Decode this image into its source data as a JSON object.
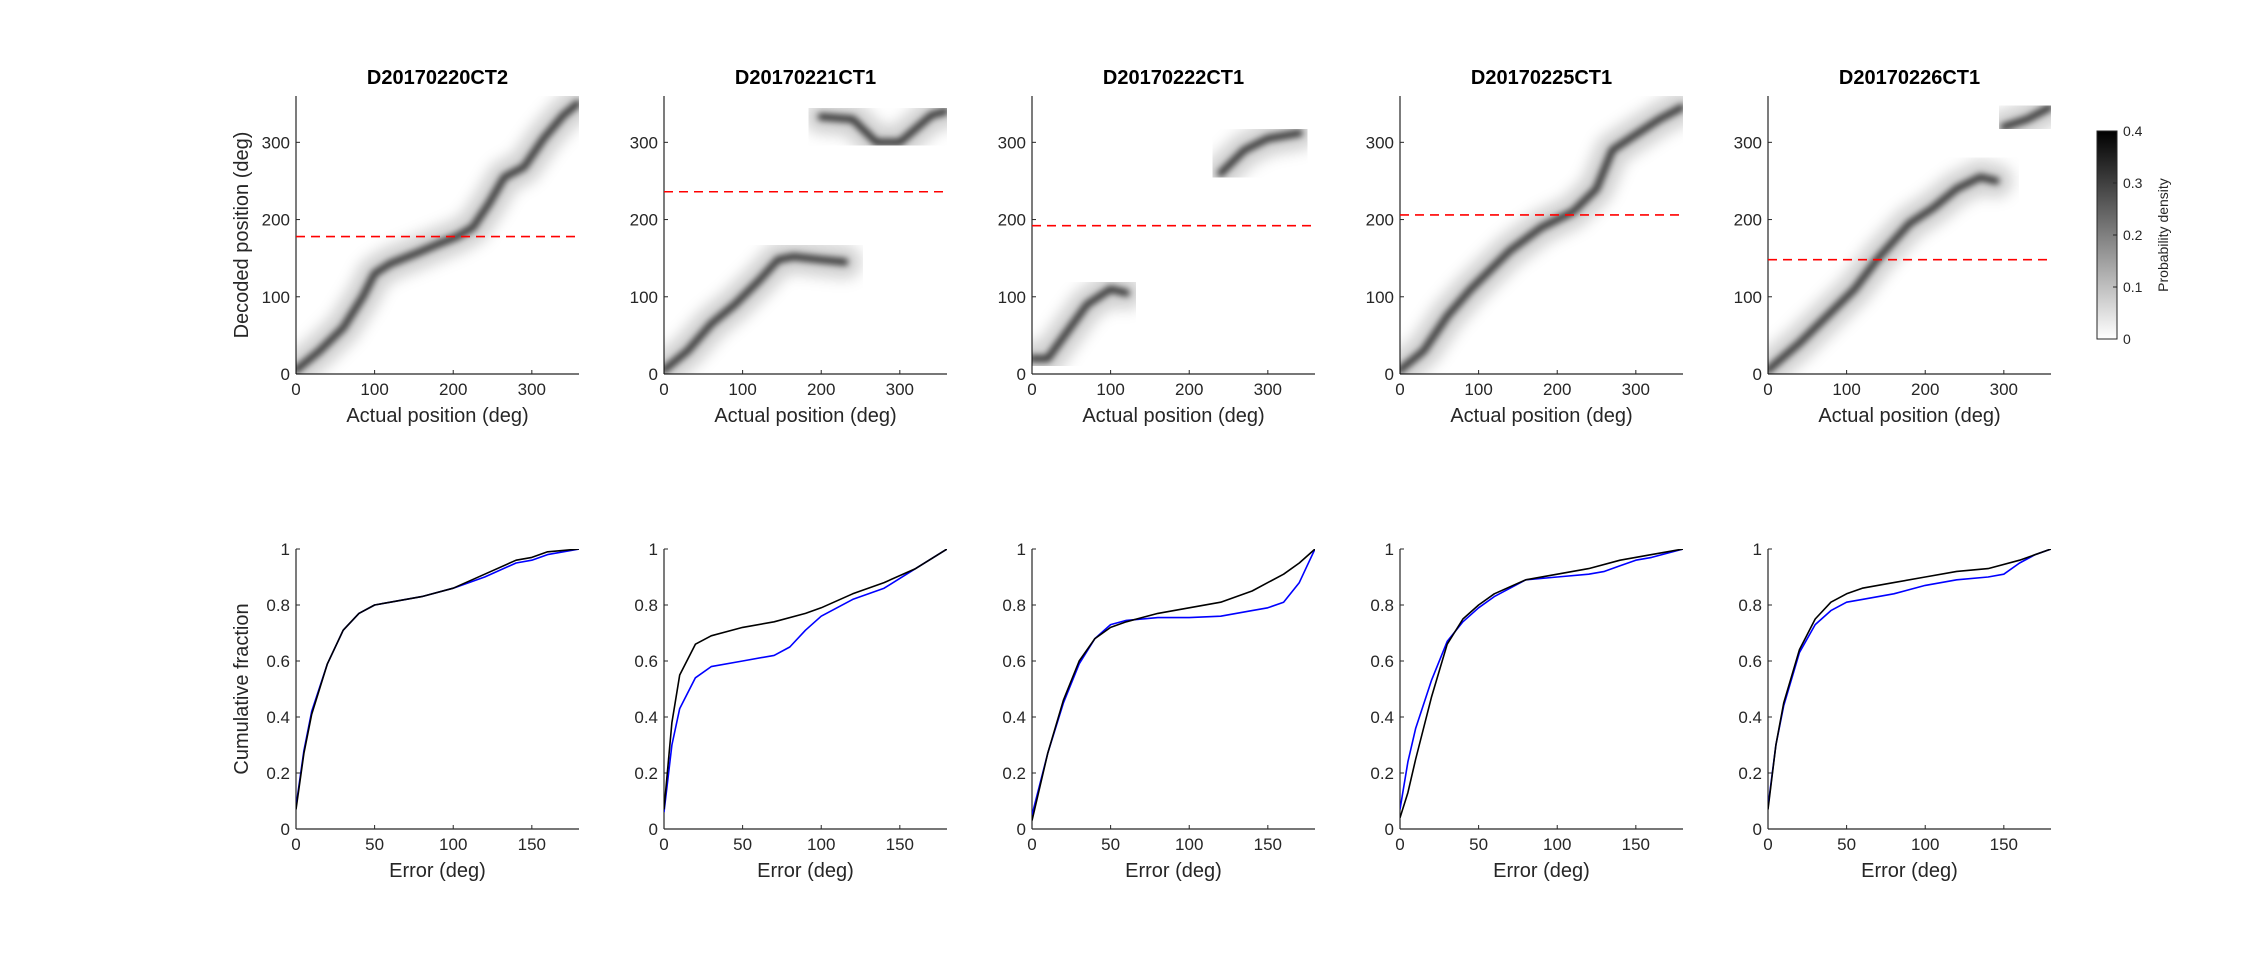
{
  "chart_data": [
    {
      "type": "heatmap",
      "title": "D20170220CT2",
      "xlabel": "Actual position (deg)",
      "ylabel": "Decoded position (deg)",
      "xlim": [
        0,
        360
      ],
      "ylim": [
        0,
        360
      ],
      "xticks": [
        "0",
        "100",
        "200",
        "300"
      ],
      "yticks": [
        "0",
        "100",
        "200",
        "300"
      ],
      "reference_line": 178,
      "trace": [
        [
          0,
          5
        ],
        [
          30,
          30
        ],
        [
          60,
          60
        ],
        [
          85,
          100
        ],
        [
          100,
          130
        ],
        [
          120,
          143
        ],
        [
          150,
          155
        ],
        [
          180,
          168
        ],
        [
          205,
          178
        ],
        [
          225,
          190
        ],
        [
          245,
          220
        ],
        [
          265,
          255
        ],
        [
          290,
          268
        ],
        [
          315,
          305
        ],
        [
          340,
          335
        ],
        [
          358,
          350
        ]
      ]
    },
    {
      "type": "heatmap",
      "title": "D20170221CT1",
      "xlabel": "Actual position (deg)",
      "ylabel": "",
      "xlim": [
        0,
        360
      ],
      "ylim": [
        0,
        360
      ],
      "xticks": [
        "0",
        "100",
        "200",
        "300"
      ],
      "yticks": [
        "0",
        "100",
        "200",
        "300"
      ],
      "reference_line": 236,
      "trace": [
        [
          0,
          5
        ],
        [
          30,
          30
        ],
        [
          60,
          65
        ],
        [
          90,
          90
        ],
        [
          120,
          120
        ],
        [
          145,
          148
        ],
        [
          165,
          152
        ],
        [
          200,
          148
        ],
        [
          230,
          145
        ]
      ],
      "trace2": [
        [
          200,
          333
        ],
        [
          240,
          330
        ],
        [
          270,
          300
        ],
        [
          300,
          300
        ],
        [
          340,
          335
        ],
        [
          358,
          340
        ]
      ]
    },
    {
      "type": "heatmap",
      "title": "D20170222CT1",
      "xlabel": "Actual position (deg)",
      "ylabel": "",
      "xlim": [
        0,
        360
      ],
      "ylim": [
        0,
        360
      ],
      "xticks": [
        "0",
        "100",
        "200",
        "300"
      ],
      "yticks": [
        "0",
        "100",
        "200",
        "300"
      ],
      "reference_line": 192,
      "trace": [
        [
          0,
          20
        ],
        [
          20,
          20
        ],
        [
          70,
          90
        ],
        [
          100,
          110
        ],
        [
          120,
          105
        ]
      ],
      "trace2": [
        [
          240,
          260
        ],
        [
          270,
          290
        ],
        [
          300,
          305
        ],
        [
          340,
          312
        ]
      ]
    },
    {
      "type": "heatmap",
      "title": "D20170225CT1",
      "xlabel": "Actual position (deg)",
      "ylabel": "",
      "xlim": [
        0,
        360
      ],
      "ylim": [
        0,
        360
      ],
      "xticks": [
        "0",
        "100",
        "200",
        "300"
      ],
      "yticks": [
        "0",
        "100",
        "200",
        "300"
      ],
      "reference_line": 206,
      "trace": [
        [
          0,
          5
        ],
        [
          30,
          30
        ],
        [
          60,
          75
        ],
        [
          90,
          110
        ],
        [
          110,
          130
        ],
        [
          140,
          160
        ],
        [
          180,
          190
        ],
        [
          220,
          210
        ],
        [
          250,
          240
        ],
        [
          270,
          290
        ],
        [
          300,
          310
        ],
        [
          330,
          330
        ],
        [
          358,
          345
        ]
      ]
    },
    {
      "type": "heatmap",
      "title": "D20170226CT1",
      "xlabel": "Actual position (deg)",
      "ylabel": "",
      "xlim": [
        0,
        360
      ],
      "ylim": [
        0,
        360
      ],
      "xticks": [
        "0",
        "100",
        "200",
        "300"
      ],
      "yticks": [
        "0",
        "100",
        "200",
        "300"
      ],
      "reference_line": 148,
      "trace": [
        [
          0,
          5
        ],
        [
          40,
          40
        ],
        [
          80,
          80
        ],
        [
          110,
          110
        ],
        [
          140,
          150
        ],
        [
          180,
          195
        ],
        [
          210,
          215
        ],
        [
          240,
          240
        ],
        [
          270,
          255
        ],
        [
          290,
          250
        ]
      ],
      "trace2": [
        [
          300,
          320
        ],
        [
          330,
          330
        ],
        [
          358,
          345
        ]
      ]
    },
    {
      "type": "line",
      "title": "",
      "xlabel": "Error (deg)",
      "ylabel": "Cumulative fraction",
      "xlim": [
        0,
        180
      ],
      "ylim": [
        0,
        1
      ],
      "xticks": [
        "0",
        "50",
        "100",
        "150"
      ],
      "yticks": [
        "0",
        "0.2",
        "0.4",
        "0.6",
        "0.8",
        "1"
      ],
      "series": [
        {
          "color": "#0000ff",
          "x": [
            0,
            5,
            10,
            20,
            30,
            40,
            50,
            60,
            80,
            100,
            120,
            140,
            150,
            160,
            170,
            180
          ],
          "y": [
            0.08,
            0.28,
            0.42,
            0.59,
            0.71,
            0.77,
            0.8,
            0.81,
            0.83,
            0.86,
            0.9,
            0.95,
            0.96,
            0.98,
            0.99,
            1.0
          ]
        },
        {
          "color": "#000000",
          "x": [
            0,
            5,
            10,
            20,
            30,
            40,
            50,
            60,
            80,
            100,
            120,
            140,
            150,
            160,
            170,
            180
          ],
          "y": [
            0.07,
            0.27,
            0.41,
            0.59,
            0.71,
            0.77,
            0.8,
            0.81,
            0.83,
            0.86,
            0.91,
            0.96,
            0.97,
            0.99,
            0.995,
            1.0
          ]
        }
      ]
    },
    {
      "type": "line",
      "title": "",
      "xlabel": "Error (deg)",
      "ylabel": "",
      "xlim": [
        0,
        180
      ],
      "ylim": [
        0,
        1
      ],
      "xticks": [
        "0",
        "50",
        "100",
        "150"
      ],
      "yticks": [
        "0",
        "0.2",
        "0.4",
        "0.6",
        "0.8",
        "1"
      ],
      "series": [
        {
          "color": "#0000ff",
          "x": [
            0,
            5,
            10,
            20,
            30,
            50,
            70,
            80,
            90,
            100,
            120,
            140,
            160,
            180
          ],
          "y": [
            0.06,
            0.3,
            0.43,
            0.54,
            0.58,
            0.6,
            0.62,
            0.65,
            0.71,
            0.76,
            0.82,
            0.86,
            0.93,
            1.0
          ]
        },
        {
          "color": "#000000",
          "x": [
            0,
            5,
            10,
            20,
            30,
            50,
            70,
            90,
            100,
            120,
            140,
            160,
            180
          ],
          "y": [
            0.07,
            0.38,
            0.55,
            0.66,
            0.69,
            0.72,
            0.74,
            0.77,
            0.79,
            0.84,
            0.88,
            0.93,
            1.0
          ]
        }
      ]
    },
    {
      "type": "line",
      "title": "",
      "xlabel": "Error (deg)",
      "ylabel": "",
      "xlim": [
        0,
        180
      ],
      "ylim": [
        0,
        1
      ],
      "xticks": [
        "0",
        "50",
        "100",
        "150"
      ],
      "yticks": [
        "0",
        "0.2",
        "0.4",
        "0.6",
        "0.8",
        "1"
      ],
      "series": [
        {
          "color": "#0000ff",
          "x": [
            0,
            10,
            20,
            30,
            40,
            50,
            60,
            80,
            100,
            120,
            140,
            150,
            160,
            170,
            175,
            180
          ],
          "y": [
            0.05,
            0.27,
            0.45,
            0.59,
            0.68,
            0.73,
            0.745,
            0.755,
            0.755,
            0.76,
            0.78,
            0.79,
            0.81,
            0.88,
            0.94,
            1.0
          ]
        },
        {
          "color": "#000000",
          "x": [
            0,
            10,
            20,
            30,
            40,
            50,
            60,
            80,
            100,
            120,
            140,
            150,
            160,
            170,
            180
          ],
          "y": [
            0.03,
            0.27,
            0.46,
            0.6,
            0.68,
            0.72,
            0.74,
            0.77,
            0.79,
            0.81,
            0.85,
            0.88,
            0.91,
            0.95,
            1.0
          ]
        }
      ]
    },
    {
      "type": "line",
      "title": "",
      "xlabel": "Error (deg)",
      "ylabel": "",
      "xlim": [
        0,
        180
      ],
      "ylim": [
        0,
        1
      ],
      "xticks": [
        "0",
        "50",
        "100",
        "150"
      ],
      "yticks": [
        "0",
        "0.2",
        "0.4",
        "0.6",
        "0.8",
        "1"
      ],
      "series": [
        {
          "color": "#0000ff",
          "x": [
            0,
            5,
            10,
            20,
            30,
            40,
            50,
            60,
            80,
            100,
            120,
            130,
            140,
            150,
            160,
            180
          ],
          "y": [
            0.07,
            0.24,
            0.36,
            0.53,
            0.67,
            0.74,
            0.79,
            0.83,
            0.89,
            0.9,
            0.91,
            0.92,
            0.94,
            0.96,
            0.97,
            1.0
          ]
        },
        {
          "color": "#000000",
          "x": [
            0,
            5,
            10,
            20,
            30,
            40,
            50,
            60,
            80,
            100,
            120,
            140,
            160,
            180
          ],
          "y": [
            0.04,
            0.13,
            0.25,
            0.47,
            0.66,
            0.75,
            0.8,
            0.84,
            0.89,
            0.91,
            0.93,
            0.96,
            0.98,
            1.0
          ]
        }
      ]
    },
    {
      "type": "line",
      "title": "",
      "xlabel": "Error (deg)",
      "ylabel": "",
      "xlim": [
        0,
        180
      ],
      "ylim": [
        0,
        1
      ],
      "xticks": [
        "0",
        "50",
        "100",
        "150"
      ],
      "yticks": [
        "0",
        "0.2",
        "0.4",
        "0.6",
        "0.8",
        "1"
      ],
      "series": [
        {
          "color": "#0000ff",
          "x": [
            0,
            5,
            10,
            20,
            30,
            40,
            50,
            60,
            80,
            100,
            120,
            140,
            150,
            160,
            170,
            180
          ],
          "y": [
            0.08,
            0.3,
            0.44,
            0.63,
            0.73,
            0.78,
            0.81,
            0.82,
            0.84,
            0.87,
            0.89,
            0.9,
            0.91,
            0.95,
            0.98,
            1.0
          ]
        },
        {
          "color": "#000000",
          "x": [
            0,
            5,
            10,
            20,
            30,
            40,
            50,
            60,
            80,
            100,
            120,
            140,
            160,
            180
          ],
          "y": [
            0.07,
            0.3,
            0.45,
            0.64,
            0.75,
            0.81,
            0.84,
            0.86,
            0.88,
            0.9,
            0.92,
            0.93,
            0.96,
            1.0
          ]
        }
      ]
    }
  ],
  "colorbar": {
    "label": "Probability density",
    "min": 0,
    "max": 0.4,
    "ticks": [
      "0",
      "0.1",
      "0.2",
      "0.3",
      "0.4"
    ],
    "colors": [
      "#ffffff",
      "#000000"
    ]
  },
  "reference_line_color": "#ff0000"
}
